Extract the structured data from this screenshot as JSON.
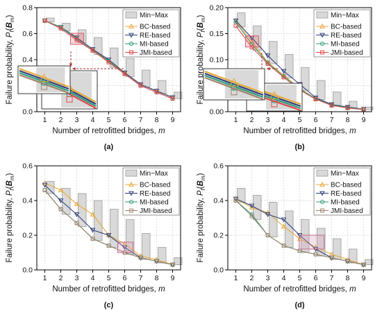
{
  "colors": {
    "minmax_fill": "#d9d9d9",
    "minmax_edge": "#999999",
    "highlight": "#e05a6a",
    "arrow": "#a52a2a",
    "grid": "#d0d0d0"
  },
  "chart_data": [
    {
      "type": "bar",
      "panel": "(a)",
      "xlabel_main": "Number of retrofitted bridges, ",
      "xlabel_var": "m",
      "ylabel_main": "Failure probability, ",
      "ylabel_var": "P",
      "ylabel_sub": "f",
      "ylabel_arg": "B",
      "ylabel_arg_sub": "m",
      "x": [
        1,
        2,
        3,
        4,
        5,
        6,
        7,
        8,
        9
      ],
      "xlim": [
        0.5,
        9.5
      ],
      "ylim": [
        0,
        0.8
      ],
      "yticks": [
        "0.0",
        "0.2",
        "0.4",
        "0.6",
        "0.8"
      ],
      "grid": true,
      "legend_position": "top-right",
      "minmax": {
        "name": "Min~Max",
        "min": [
          0.69,
          0.62,
          0.53,
          0.44,
          0.34,
          0.27,
          0.19,
          0.14,
          0.1
        ],
        "max": [
          0.72,
          0.68,
          0.63,
          0.57,
          0.49,
          0.41,
          0.32,
          0.24,
          0.15
        ]
      },
      "series": [
        {
          "name": "BC-based",
          "color": "#e8a838",
          "marker": "triangle-up",
          "values": [
            0.7,
            0.65,
            0.57,
            0.48,
            0.39,
            0.3,
            0.21,
            0.16,
            0.11
          ]
        },
        {
          "name": "RE-based",
          "color": "#2e3f7a",
          "marker": "triangle-down",
          "values": [
            0.7,
            0.65,
            0.57,
            0.48,
            0.4,
            0.3,
            0.21,
            0.16,
            0.11
          ]
        },
        {
          "name": "MI-based",
          "color": "#2e9a7a",
          "marker": "circle",
          "values": [
            0.7,
            0.65,
            0.56,
            0.47,
            0.39,
            0.29,
            0.2,
            0.15,
            0.1
          ]
        },
        {
          "name": "JMI-based",
          "color": "#e04848",
          "marker": "square",
          "values": [
            0.7,
            0.64,
            0.55,
            0.47,
            0.38,
            0.29,
            0.2,
            0.15,
            0.1
          ]
        }
      ]
    },
    {
      "type": "bar",
      "panel": "(b)",
      "xlabel_main": "Number of retrofitted bridges, ",
      "xlabel_var": "m",
      "ylabel_main": "Failure probability, ",
      "ylabel_var": "P",
      "ylabel_sub": "f",
      "ylabel_arg": "B",
      "ylabel_arg_sub": "m",
      "x": [
        1,
        2,
        3,
        4,
        5,
        6,
        7,
        8,
        9
      ],
      "xlim": [
        0.5,
        9.5
      ],
      "ylim": [
        0,
        0.2
      ],
      "yticks": [
        "0.00",
        "0.05",
        "0.10",
        "0.15",
        "0.20"
      ],
      "grid": true,
      "legend_position": "top-right",
      "minmax": {
        "name": "Min~Max",
        "min": [
          0.163,
          0.118,
          0.092,
          0.065,
          0.041,
          0.023,
          0.012,
          0.007,
          0.004
        ],
        "max": [
          0.19,
          0.165,
          0.135,
          0.11,
          0.085,
          0.06,
          0.038,
          0.02,
          0.009
        ]
      },
      "series": [
        {
          "name": "BC-based",
          "color": "#e8a838",
          "marker": "triangle-up",
          "values": [
            0.175,
            0.135,
            0.095,
            0.07,
            0.045,
            0.025,
            0.013,
            0.008,
            0.005
          ]
        },
        {
          "name": "RE-based",
          "color": "#2e3f7a",
          "marker": "triangle-down",
          "values": [
            0.175,
            0.142,
            0.108,
            0.078,
            0.053,
            0.027,
            0.014,
            0.009,
            0.005
          ]
        },
        {
          "name": "MI-based",
          "color": "#2e9a7a",
          "marker": "circle",
          "values": [
            0.172,
            0.13,
            0.094,
            0.068,
            0.044,
            0.025,
            0.013,
            0.008,
            0.005
          ]
        },
        {
          "name": "JMI-based",
          "color": "#e04848",
          "marker": "square",
          "values": [
            0.165,
            0.124,
            0.092,
            0.066,
            0.042,
            0.024,
            0.012,
            0.007,
            0.004
          ]
        }
      ]
    },
    {
      "type": "bar",
      "panel": "(c)",
      "xlabel_main": "Number of retrofitted bridges, ",
      "xlabel_var": "m",
      "ylabel_main": "Failure probability, ",
      "ylabel_var": "P",
      "ylabel_sub": "f",
      "ylabel_arg": "B",
      "ylabel_arg_sub": "m",
      "x": [
        1,
        2,
        3,
        4,
        5,
        6,
        7,
        8,
        9
      ],
      "xlim": [
        0.5,
        9.5
      ],
      "ylim": [
        0,
        0.6
      ],
      "yticks": [
        "0.0",
        "0.2",
        "0.4",
        "0.6"
      ],
      "grid": true,
      "legend_position": "top-right",
      "minmax": {
        "name": "Min~Max",
        "min": [
          0.44,
          0.32,
          0.25,
          0.17,
          0.13,
          0.09,
          0.06,
          0.04,
          0.03
        ],
        "max": [
          0.51,
          0.47,
          0.44,
          0.4,
          0.35,
          0.29,
          0.21,
          0.13,
          0.07
        ]
      },
      "series": [
        {
          "name": "BC-based",
          "color": "#e8a838",
          "marker": "triangle-up",
          "values": [
            0.5,
            0.46,
            0.38,
            0.32,
            0.2,
            0.15,
            0.08,
            0.06,
            0.03
          ]
        },
        {
          "name": "RE-based",
          "color": "#2e3f7a",
          "marker": "triangle-down",
          "values": [
            0.49,
            0.4,
            0.32,
            0.23,
            0.2,
            0.13,
            0.07,
            0.05,
            0.03
          ]
        },
        {
          "name": "MI-based",
          "color": "#2e9a7a",
          "marker": "circle",
          "values": [
            0.46,
            0.35,
            0.27,
            0.18,
            0.14,
            0.1,
            0.07,
            0.05,
            0.03
          ]
        },
        {
          "name": "JMI-based",
          "color": "#a0826a",
          "marker": "square",
          "values": [
            0.46,
            0.35,
            0.27,
            0.18,
            0.14,
            0.1,
            0.07,
            0.05,
            0.03
          ]
        }
      ]
    },
    {
      "type": "bar",
      "panel": "(d)",
      "xlabel_main": "Number of retrofitted bridges, ",
      "xlabel_var": "m",
      "ylabel_main": "Failure probability, ",
      "ylabel_var": "P",
      "ylabel_sub": "f",
      "ylabel_arg": "B",
      "ylabel_arg_sub": "m",
      "x": [
        1,
        2,
        3,
        4,
        5,
        6,
        7,
        8,
        9
      ],
      "xlim": [
        0.5,
        9.5
      ],
      "ylim": [
        0,
        0.6
      ],
      "yticks": [
        "0.0",
        "0.2",
        "0.4",
        "0.6"
      ],
      "grid": true,
      "legend_position": "top-right",
      "minmax": {
        "name": "Min~Max",
        "min": [
          0.39,
          0.29,
          0.19,
          0.13,
          0.1,
          0.08,
          0.06,
          0.04,
          0.03
        ],
        "max": [
          0.47,
          0.43,
          0.39,
          0.34,
          0.29,
          0.24,
          0.18,
          0.12,
          0.06
        ]
      },
      "series": [
        {
          "name": "BC-based",
          "color": "#e8a838",
          "marker": "triangle-up",
          "values": [
            0.41,
            0.36,
            0.33,
            0.25,
            0.18,
            0.13,
            0.09,
            0.06,
            0.03
          ]
        },
        {
          "name": "RE-based",
          "color": "#2e3f7a",
          "marker": "triangle-down",
          "values": [
            0.41,
            0.37,
            0.32,
            0.29,
            0.2,
            0.12,
            0.07,
            0.05,
            0.03
          ]
        },
        {
          "name": "MI-based",
          "color": "#2e9a7a",
          "marker": "circle",
          "values": [
            0.4,
            0.32,
            0.2,
            0.14,
            0.11,
            0.09,
            0.07,
            0.05,
            0.03
          ]
        },
        {
          "name": "JMI-based",
          "color": "#a0826a",
          "marker": "square",
          "values": [
            0.4,
            0.31,
            0.2,
            0.14,
            0.11,
            0.09,
            0.07,
            0.05,
            0.03
          ]
        }
      ]
    }
  ]
}
